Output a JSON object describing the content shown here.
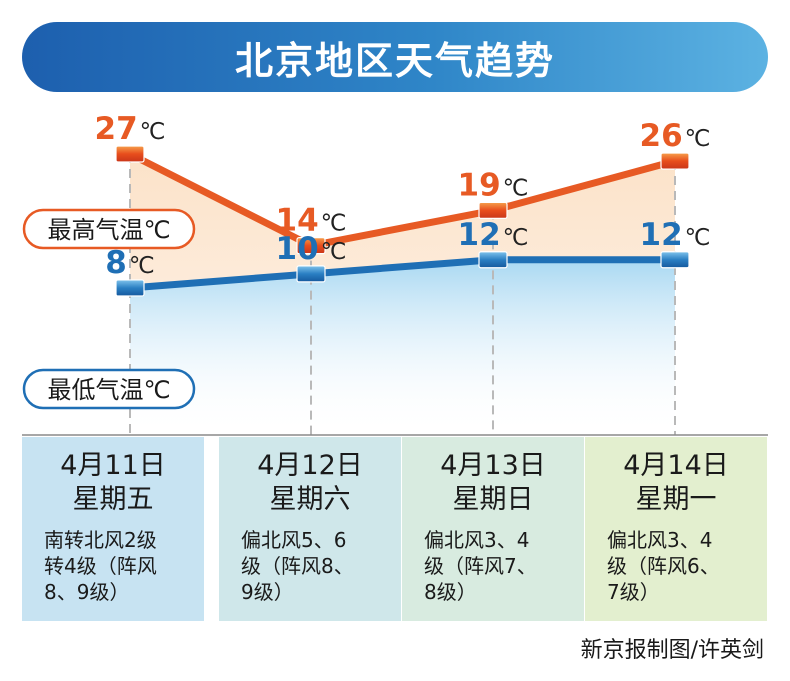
{
  "header": {
    "title": "北京地区天气趋势"
  },
  "colors": {
    "high": "#e75a24",
    "low": "#1f6fb5",
    "banner": "#2f86c8"
  },
  "chart_data": {
    "type": "line",
    "categories": [
      "4月11日",
      "4月12日",
      "4月13日",
      "4月14日"
    ],
    "series": [
      {
        "name": "最高气温℃",
        "values": [
          27,
          14,
          19,
          26
        ]
      },
      {
        "name": "最低气温℃",
        "values": [
          8,
          10,
          12,
          12
        ]
      }
    ],
    "unit": "℃"
  },
  "days": [
    {
      "date": "4月11日",
      "weekday": "星期五",
      "wind": "南转北风2级\n转4级（阵风\n8、9级）"
    },
    {
      "date": "4月12日",
      "weekday": "星期六",
      "wind": "偏北风5、6\n级（阵风8、\n9级）"
    },
    {
      "date": "4月13日",
      "weekday": "星期日",
      "wind": "偏北风3、4\n级（阵风7、\n8级）"
    },
    {
      "date": "4月14日",
      "weekday": "星期一",
      "wind": "偏北风3、4\n级（阵风6、\n7级）"
    }
  ],
  "credit": "新京报制图/许英剑"
}
